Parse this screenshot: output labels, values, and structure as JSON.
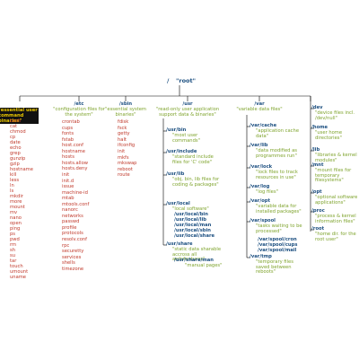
{
  "root": {
    "path": "/",
    "desc": "\"root\""
  },
  "bin": {
    "desc": "\"essential user command binaries\"",
    "files": [
      "bash",
      "cat",
      "chmod",
      "cp",
      "date",
      "echo",
      "grep",
      "gunzip",
      "gzip",
      "hostname",
      "kill",
      "less",
      "ln",
      "ls",
      "mkdir",
      "more",
      "mount",
      "mv",
      "nano",
      "open",
      "ping",
      "ps",
      "pwd",
      "rm",
      "sh",
      "su",
      "tar",
      "touch",
      "umount",
      "uname"
    ]
  },
  "etc": {
    "path": "/etc",
    "desc": "\"configuration files for the system\"",
    "files": [
      "crontab",
      "cups",
      "fonts",
      "fstab",
      "host.conf",
      "hostname",
      "hosts",
      "hosts.allow",
      "hosts.deny",
      "init",
      "init.d",
      "issue",
      "machine-id",
      "mtab",
      "mtools.conf",
      "nanorc",
      "networks",
      "passwd",
      "profile",
      "protocols",
      "resolv.conf",
      "rpc",
      "securetty",
      "services",
      "shells",
      "timezone"
    ]
  },
  "sbin": {
    "path": "/sbin",
    "desc": "\"essential system binaries\"",
    "files": [
      "fdisk",
      "fsck",
      "getty",
      "halt",
      "ifconfig",
      "init",
      "mkfs",
      "mkswap",
      "reboot",
      "route"
    ]
  },
  "usr": {
    "path": "/usr",
    "desc": "\"read-only user application support data & binaries\"",
    "children": [
      {
        "path": "/usr/bin",
        "desc": "\"most user commands\"",
        "files": []
      },
      {
        "path": "/usr/include",
        "desc": "\"standard include files for 'C' code\"",
        "files": []
      },
      {
        "path": "/usr/lib",
        "desc": "\"obj, bin, lib files for coding & packages\"",
        "files": []
      },
      {
        "path": "/usr/local",
        "desc": "\"local software\"",
        "files": [
          "/usr/local/bin",
          "/usr/local/lib",
          "/usr/local/man",
          "/usr/local/sbin",
          "/usr/local/share"
        ]
      },
      {
        "path": "/usr/share",
        "desc": "\"static data sharable accross all architectures\"",
        "files": [
          "/usr/share/man",
          "\"manual pages\""
        ]
      }
    ]
  },
  "var": {
    "path": "/var",
    "desc": "\"variable data files\"",
    "children": [
      {
        "path": "/var/cache",
        "desc": "\"application cache data\"",
        "files": []
      },
      {
        "path": "/var/lib",
        "desc": "\"data modified as programmes run\"",
        "files": []
      },
      {
        "path": "/var/lock",
        "desc": "\"lock files to track resources in use\"",
        "files": []
      },
      {
        "path": "/var/log",
        "desc": "\"log files\"",
        "files": []
      },
      {
        "path": "/var/opt",
        "desc": "\"variable data for installed packages\"",
        "files": []
      },
      {
        "path": "/var/spool",
        "desc": "\"tasks waiting to be processed\"",
        "files": [
          "/var/spool/cron",
          "/var/spool/cups",
          "/var/spool/mail"
        ]
      },
      {
        "path": "/var/tmp",
        "desc": "\"temporary files saved between reboots\"",
        "files": []
      }
    ]
  },
  "right": [
    {
      "path": "/dev",
      "desc": "\"device files incl. /dev/null\""
    },
    {
      "path": "/home",
      "desc": "\"user home directories\""
    },
    {
      "path": "/lib",
      "desc": "\"libraries & kernel modules\""
    },
    {
      "path": "/mnt",
      "desc": "\"mount files for temporary filesystems\""
    },
    {
      "path": "/opt",
      "desc": "\"optional software applications\""
    },
    {
      "path": "/proc",
      "desc": "\"process & kernel information files\""
    },
    {
      "path": "/root",
      "desc": "\"home dir. for the root user\""
    }
  ],
  "colors": {
    "dir": "#1c4f80",
    "desc": "#7ea32c",
    "file": "#c0392b",
    "line": "#000000",
    "highlight_bg": "#111111",
    "highlight_fg": "#e9c600"
  }
}
